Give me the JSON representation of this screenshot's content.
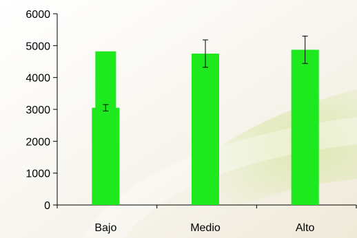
{
  "chart_data": {
    "type": "bar",
    "title": "",
    "xlabel": "",
    "ylabel": "",
    "categories": [
      "Bajo",
      "Medio",
      "Alto"
    ],
    "ylim": [
      0,
      6000
    ],
    "yticks": [
      0,
      1000,
      2000,
      3000,
      4000,
      5000,
      6000
    ],
    "grid": false,
    "legend": "none",
    "series": [
      {
        "values": [
          3050,
          4750,
          4870
        ],
        "error": [
          100,
          430,
          430
        ],
        "color": "#1ee81e"
      },
      {
        "values": [
          4820,
          null,
          null
        ],
        "color": "#1ee81e"
      }
    ],
    "background": {
      "base": "#fbf9f3",
      "swoosh": "#d9e8a6"
    }
  }
}
